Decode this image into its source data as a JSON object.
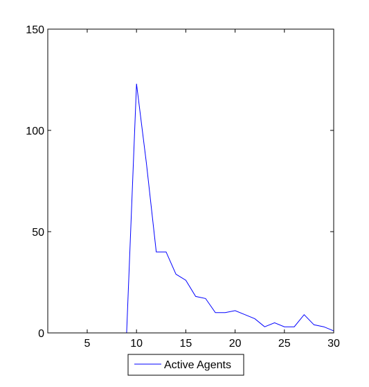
{
  "chart_data": {
    "type": "line",
    "title": "",
    "xlabel": "",
    "ylabel": "",
    "xlim": [
      1,
      30
    ],
    "ylim": [
      0,
      150
    ],
    "xticks": [
      5,
      10,
      15,
      20,
      25,
      30
    ],
    "yticks": [
      0,
      50,
      100,
      150
    ],
    "grid": false,
    "legend_position": "bottom-center",
    "series": [
      {
        "name": "Active Agents",
        "color": "#0000ff",
        "x": [
          1,
          2,
          3,
          4,
          5,
          6,
          7,
          8,
          9,
          10,
          11,
          12,
          13,
          14,
          15,
          16,
          17,
          18,
          19,
          20,
          21,
          22,
          23,
          24,
          25,
          26,
          27,
          28,
          29,
          30
        ],
        "y": [
          0,
          0,
          0,
          0,
          0,
          0,
          0,
          0,
          0,
          123,
          84,
          40,
          40,
          29,
          26,
          18,
          17,
          10,
          10,
          11,
          9,
          7,
          3,
          5,
          3,
          3,
          9,
          4,
          3,
          1
        ]
      }
    ]
  }
}
